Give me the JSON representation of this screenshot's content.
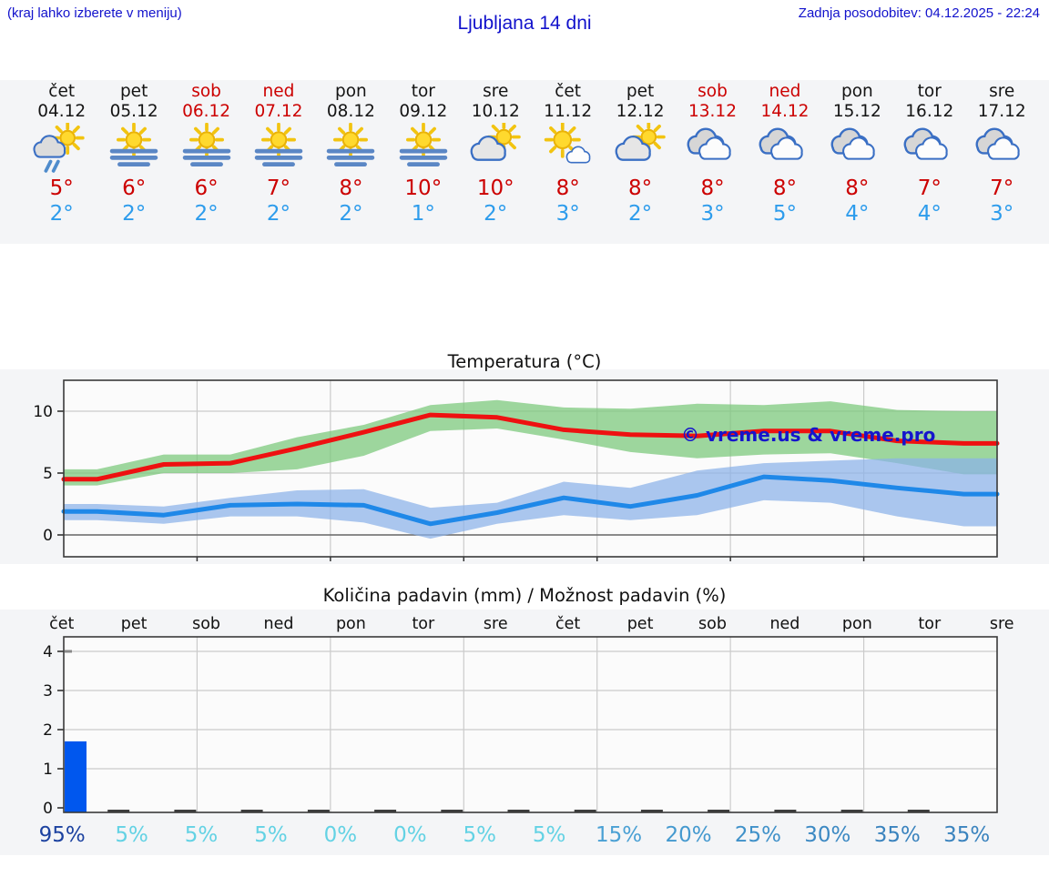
{
  "header": {
    "left_note": "(kraj lahko izberete v meniju)",
    "title": "Ljubljana 14 dni",
    "last_update": "Zadnja posodobitev: 04.12.2025 - 22:24"
  },
  "watermark": "© vreme.us & vreme.pro",
  "days": [
    {
      "name": "čet",
      "date": "04.12",
      "weekend": false,
      "icon": "sun-cloud-rain",
      "high": "5°",
      "low": "2°"
    },
    {
      "name": "pet",
      "date": "05.12",
      "weekend": false,
      "icon": "sun-fog",
      "high": "6°",
      "low": "2°"
    },
    {
      "name": "sob",
      "date": "06.12",
      "weekend": true,
      "icon": "sun-fog",
      "high": "6°",
      "low": "2°"
    },
    {
      "name": "ned",
      "date": "07.12",
      "weekend": true,
      "icon": "sun-fog",
      "high": "7°",
      "low": "2°"
    },
    {
      "name": "pon",
      "date": "08.12",
      "weekend": false,
      "icon": "sun-fog",
      "high": "8°",
      "low": "2°"
    },
    {
      "name": "tor",
      "date": "09.12",
      "weekend": false,
      "icon": "sun-fog",
      "high": "10°",
      "low": "1°"
    },
    {
      "name": "sre",
      "date": "10.12",
      "weekend": false,
      "icon": "cloud-sun",
      "high": "10°",
      "low": "2°"
    },
    {
      "name": "čet",
      "date": "11.12",
      "weekend": false,
      "icon": "sun-small-cloud",
      "high": "8°",
      "low": "3°"
    },
    {
      "name": "pet",
      "date": "12.12",
      "weekend": false,
      "icon": "cloud-sun",
      "high": "8°",
      "low": "2°"
    },
    {
      "name": "sob",
      "date": "13.12",
      "weekend": true,
      "icon": "cloudy",
      "high": "8°",
      "low": "3°"
    },
    {
      "name": "ned",
      "date": "14.12",
      "weekend": true,
      "icon": "cloudy",
      "high": "8°",
      "low": "5°"
    },
    {
      "name": "pon",
      "date": "15.12",
      "weekend": false,
      "icon": "cloudy",
      "high": "8°",
      "low": "4°"
    },
    {
      "name": "tor",
      "date": "16.12",
      "weekend": false,
      "icon": "cloudy",
      "high": "7°",
      "low": "4°"
    },
    {
      "name": "sre",
      "date": "17.12",
      "weekend": false,
      "icon": "cloudy",
      "high": "7°",
      "low": "3°"
    }
  ],
  "colors": {
    "accent_blue": "#1212cc",
    "weekend_red": "#cc0000",
    "high_text_red": "#cc0000",
    "low_text_blue": "#2d9cec",
    "temp_line_high": "#ee1111",
    "temp_line_low": "#1f88e8",
    "band_green": "rgba(120,200,120,0.72)",
    "band_blue": "rgba(139,178,233,0.72)",
    "bar_blue": "#0057ee",
    "watermark_blue": "#1515cc",
    "grid_gray": "#cbcbcb",
    "axis_dark": "#3a3a3a",
    "plot_bg": "#fbfbfb"
  },
  "chart_data": [
    {
      "type": "line",
      "title": "Temperatura (°C)",
      "categories": [
        "čet",
        "pet",
        "sob",
        "ned",
        "pon",
        "tor",
        "sre",
        "čet",
        "pet",
        "sob",
        "ned",
        "pon",
        "tor",
        "sre"
      ],
      "ylabel": "°C",
      "yticks": [
        0,
        5,
        10
      ],
      "ylim": [
        -1.8,
        12.5
      ],
      "grid": true,
      "series": [
        {
          "name": "max temperature",
          "values": [
            4.5,
            5.7,
            5.8,
            7.0,
            8.3,
            9.7,
            9.5,
            8.5,
            8.1,
            8.0,
            8.4,
            8.4,
            7.6,
            7.4
          ],
          "band_upper": [
            5.3,
            6.5,
            6.5,
            7.9,
            8.9,
            10.5,
            10.9,
            10.3,
            10.2,
            10.6,
            10.5,
            10.8,
            10.1,
            10.0
          ],
          "band_lower": [
            4.0,
            5.0,
            5.0,
            5.3,
            6.4,
            8.4,
            8.6,
            7.7,
            6.7,
            6.2,
            6.5,
            6.6,
            5.8,
            4.9
          ]
        },
        {
          "name": "min temperature",
          "values": [
            1.9,
            1.6,
            2.4,
            2.5,
            2.4,
            0.9,
            1.8,
            3.0,
            2.3,
            3.2,
            4.7,
            4.4,
            3.8,
            3.3
          ],
          "band_upper": [
            2.5,
            2.3,
            3.0,
            3.6,
            3.7,
            2.2,
            2.6,
            4.3,
            3.8,
            5.2,
            5.8,
            6.0,
            6.2,
            6.2
          ],
          "band_lower": [
            1.2,
            0.9,
            1.5,
            1.5,
            1.0,
            -0.3,
            0.9,
            1.6,
            1.2,
            1.6,
            2.8,
            2.6,
            1.5,
            0.7
          ]
        }
      ]
    },
    {
      "type": "bar",
      "title": "Količina padavin (mm) / Možnost padavin (%)",
      "categories": [
        "čet",
        "pet",
        "sob",
        "ned",
        "pon",
        "tor",
        "sre",
        "čet",
        "pet",
        "sob",
        "ned",
        "pon",
        "tor",
        "sre"
      ],
      "values_mm": [
        1.7,
        0,
        0,
        0,
        0,
        0,
        0,
        0,
        0,
        0,
        0,
        0,
        0,
        0
      ],
      "probabilities_pct": [
        95,
        5,
        5,
        5,
        0,
        0,
        5,
        5,
        15,
        20,
        25,
        30,
        35,
        35
      ],
      "prob_colors": [
        "#1c42a0",
        "#63d2e4",
        "#63d2e4",
        "#63d2e4",
        "#63d2e4",
        "#63d2e4",
        "#63d2e4",
        "#63d2e4",
        "#4aa0d4",
        "#4499cf",
        "#4091c9",
        "#3c89c3",
        "#3a83be",
        "#3a83be"
      ],
      "yticks": [
        0,
        1,
        2,
        3,
        4
      ],
      "ylim": [
        0,
        4.4
      ],
      "grid": true
    }
  ]
}
